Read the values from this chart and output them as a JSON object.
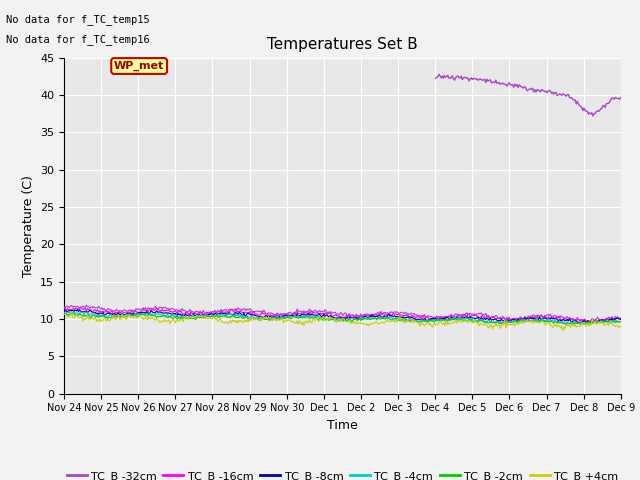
{
  "title": "Temperatures Set B",
  "xlabel": "Time",
  "ylabel": "Temperature (C)",
  "ylim": [
    0,
    45
  ],
  "yticks": [
    0,
    5,
    10,
    15,
    20,
    25,
    30,
    35,
    40,
    45
  ],
  "plot_bg_color": "#e8e8e8",
  "fig_bg_color": "#f2f2f2",
  "no_data_text1": "No data for f_TC_temp15",
  "no_data_text2": "No data for f_TC_temp16",
  "wp_met_label": "WP_met",
  "legend_entries": [
    "TC_B -32cm",
    "TC_B -16cm",
    "TC_B -8cm",
    "TC_B -4cm",
    "TC_B -2cm",
    "TC_B +4cm"
  ],
  "line_colors": [
    "#aa44cc",
    "#ff00ff",
    "#0000bb",
    "#00cccc",
    "#00cc00",
    "#cccc00"
  ],
  "wp_met_color": "#aa44cc",
  "xtick_labels": [
    "Nov 24",
    "Nov 25",
    "Nov 26",
    "Nov 27",
    "Nov 28",
    "Nov 29",
    "Nov 30",
    "Dec 1",
    "Dec 2",
    "Dec 3",
    "Dec 4",
    "Dec 5",
    "Dec 6",
    "Dec 7",
    "Dec 8",
    "Dec 9"
  ],
  "num_points": 500,
  "title_fontsize": 11,
  "axis_label_fontsize": 9,
  "tick_fontsize": 8,
  "xtick_fontsize": 7,
  "legend_fontsize": 8
}
